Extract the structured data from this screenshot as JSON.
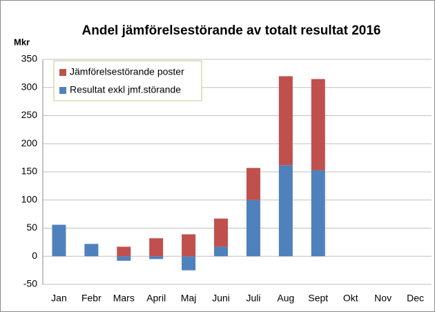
{
  "chart_data": {
    "type": "bar",
    "stacked": true,
    "title": "Andel jämförelsestörande av totalt resultat 2016",
    "y_label": "Mkr",
    "categories": [
      "Jan",
      "Febr",
      "Mars",
      "April",
      "Maj",
      "Juni",
      "Juli",
      "Aug",
      "Sept",
      "Okt",
      "Nov",
      "Dec"
    ],
    "series": [
      {
        "name": "Resultat exkl jmf.störande",
        "color": "#4f81bd",
        "values": [
          56,
          22,
          -8,
          -5,
          -25,
          17,
          100,
          162,
          153,
          null,
          null,
          null
        ]
      },
      {
        "name": "Jämförelsestörande poster",
        "color": "#c0504d",
        "values": [
          null,
          null,
          17,
          32,
          39,
          50,
          57,
          158,
          162,
          null,
          null,
          null
        ]
      }
    ],
    "ylim": [
      -50,
      350
    ],
    "yticks": [
      -50,
      0,
      50,
      100,
      150,
      200,
      250,
      300,
      350
    ],
    "grid": true
  }
}
